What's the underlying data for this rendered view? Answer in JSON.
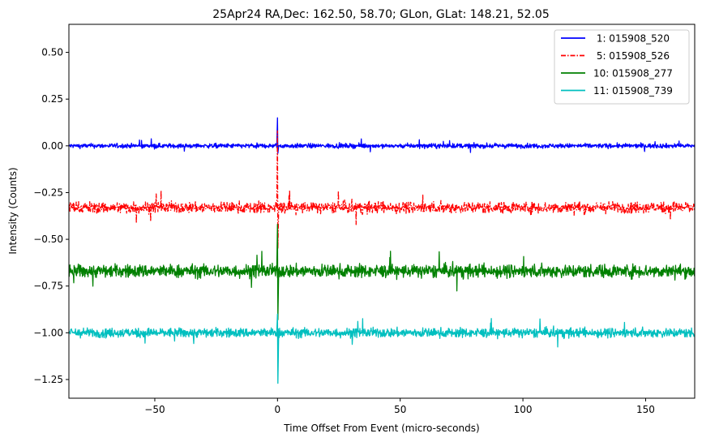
{
  "chart_data": {
    "type": "line",
    "title": "25Apr24 RA,Dec:  162.50,  58.70; GLon, GLat:  148.21,  52.05",
    "xlabel": "Time Offset From Event (micro-seconds)",
    "ylabel": "Intensity (Counts)",
    "xlim": [
      -85,
      170
    ],
    "ylim": [
      -1.35,
      0.65
    ],
    "xticks": [
      -50,
      0,
      50,
      100,
      150
    ],
    "xtick_labels": [
      "−50",
      "0",
      "50",
      "100",
      "150"
    ],
    "yticks": [
      0.5,
      0.25,
      0.0,
      -0.25,
      -0.5,
      -0.75,
      -1.0,
      -1.25
    ],
    "ytick_labels": [
      "0.50",
      "0.25",
      "0.00",
      "−0.25",
      "−0.50",
      "−0.75",
      "−1.00",
      "−1.25"
    ],
    "grid": false,
    "legend_position": "top-right",
    "event_time": 0,
    "series": [
      {
        "name": " 1: 015908_520",
        "color": "#0000ff",
        "linestyle": "solid",
        "baseline": 0.0,
        "noise": 0.012,
        "spike_peak": 0.15,
        "spike_trough": -0.04
      },
      {
        "name": " 5: 015908_526",
        "color": "#ff0000",
        "linestyle": "dashdot",
        "baseline": -0.33,
        "noise": 0.03,
        "spike_peak": 0.08,
        "spike_trough": -0.55
      },
      {
        "name": "10: 015908_277",
        "color": "#008000",
        "linestyle": "solid",
        "baseline": -0.67,
        "noise": 0.035,
        "spike_peak": -0.42,
        "spike_trough": -0.93
      },
      {
        "name": "11: 015908_739",
        "color": "#00bfbf",
        "linestyle": "solid",
        "baseline": -1.0,
        "noise": 0.025,
        "spike_peak": -0.9,
        "spike_trough": -1.27
      }
    ]
  }
}
